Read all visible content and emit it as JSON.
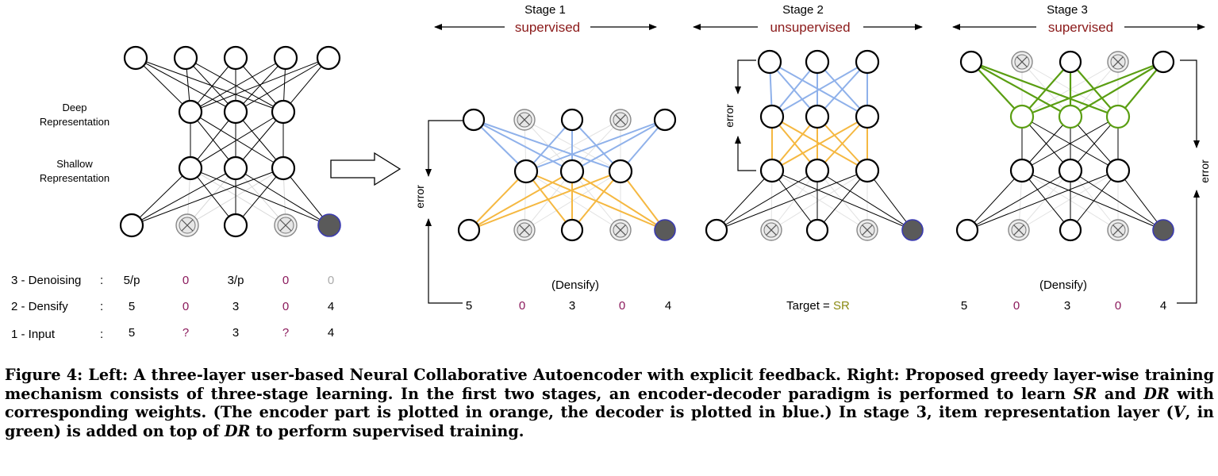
{
  "colors": {
    "supervised": "#8b1a1a",
    "unsupervised": "#8b1a1a",
    "deep": "#4c9a1a",
    "shallow": "#8a8a12",
    "zero": "#8b1a5c",
    "sr": "#8a8a12",
    "encoder": "#f5b841",
    "decoder": "#8fb1ea",
    "item": "#5a9e12",
    "filled_node": "#5a5a5a"
  },
  "left_panel": {
    "deep_label_line1": "Deep",
    "deep_label_line2": "Representation",
    "shallow_label_line1": "Shallow",
    "shallow_label_line2": "Representation",
    "rows": [
      {
        "label": "3 - Denoising",
        "colon": ":",
        "values": [
          "5/p",
          "0",
          "3/p",
          "0",
          "0"
        ]
      },
      {
        "label": "2 - Densify",
        "colon": ":",
        "values": [
          "5",
          "0",
          "3",
          "0",
          "4"
        ]
      },
      {
        "label": "1 - Input",
        "colon": ":",
        "values": [
          "5",
          "?",
          "3",
          "?",
          "4"
        ]
      }
    ]
  },
  "stages": [
    {
      "title": "Stage 1",
      "mode": "supervised",
      "note": "(Densify)",
      "values": [
        "5",
        "0",
        "3",
        "0",
        "4"
      ],
      "error_label": "error"
    },
    {
      "title": "Stage 2",
      "mode": "unsupervised",
      "error_label": "error",
      "target_prefix": "Target = ",
      "target_value": "SR"
    },
    {
      "title": "Stage 3",
      "mode": "supervised",
      "note": "(Densify)",
      "values": [
        "5",
        "0",
        "3",
        "0",
        "4"
      ],
      "error_label": "error"
    }
  ],
  "caption": {
    "p1": "Figure 4: Left: A three-layer user-based Neural Collaborative Autoencoder with explicit feedback. Right: Proposed greedy layer-wise training mechanism consists of three-stage learning. In the first two stages, an encoder-decoder paradigm is performed to learn ",
    "sr": "SR",
    "p2": " and ",
    "dr": "DR",
    "p3": " with corresponding weights. (The encoder part is plotted in orange, the decoder is plotted in blue.) In stage 3, item representation layer (",
    "v": "V",
    "p4": ", in green) is added on top of ",
    "dr2": "DR",
    "p5": " to perform supervised training."
  }
}
